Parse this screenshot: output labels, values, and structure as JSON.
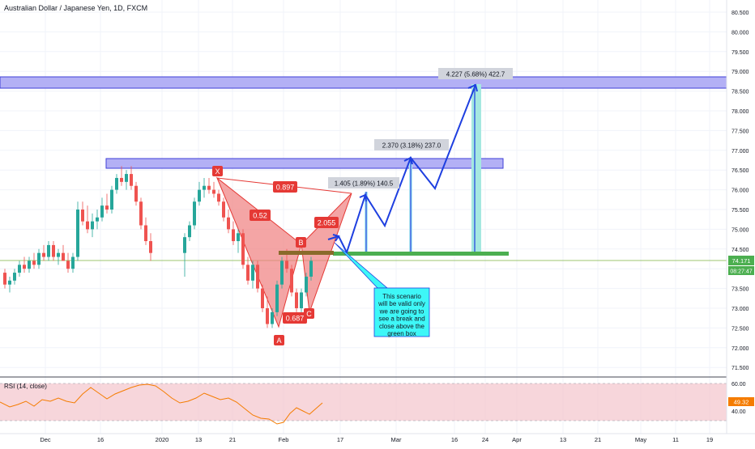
{
  "header": {
    "symbol_title": "Australian Dollar / Japanese Yen, 1D, FXCM"
  },
  "price_axis": {
    "labels": [
      "80.500",
      "80.000",
      "79.500",
      "79.000",
      "78.500",
      "78.000",
      "77.500",
      "77.000",
      "76.500",
      "76.000",
      "75.500",
      "75.000",
      "74.500",
      "74.000",
      "73.500",
      "73.000",
      "72.500",
      "72.000",
      "71.500"
    ],
    "current_price": "74.171",
    "countdown": "08:27:47"
  },
  "time_axis": {
    "labels": [
      "Dec",
      "16",
      "2020",
      "13",
      "21",
      "Feb",
      "17",
      "Mar",
      "16",
      "24",
      "Apr",
      "13",
      "21",
      "May",
      "11",
      "19"
    ]
  },
  "pattern_labels": {
    "x": "X",
    "a": "A",
    "b": "B",
    "c": "C"
  },
  "ratios": {
    "xb": "0.897",
    "xa": "0.52",
    "ac": "0.687",
    "bd": "2.055"
  },
  "measurements": {
    "m1": "1.405 (1.89%) 140.5",
    "m2": "2.370 (3.18%) 237.0",
    "m3": "4.227 (5.68%) 422.7"
  },
  "note": {
    "lines": [
      "This scenario",
      "will be valid only",
      "we are going to",
      "see a break and",
      "close above the",
      "green box"
    ]
  },
  "rsi": {
    "label": "RSI (14, close)",
    "axis_labels": [
      "60.00",
      "40.00"
    ],
    "current": "49.32"
  },
  "colors": {
    "candle_up": "#26a69a",
    "candle_down": "#ef5350",
    "zone_fill": "#b3b0f5",
    "zone_border": "#3f3fd8",
    "pattern_fill": "#f07f7f",
    "arrow": "#1e3fe0",
    "green_line": "#4caf50",
    "note_bg": "#3ef7f7",
    "rsi_line": "#f57c00"
  }
}
